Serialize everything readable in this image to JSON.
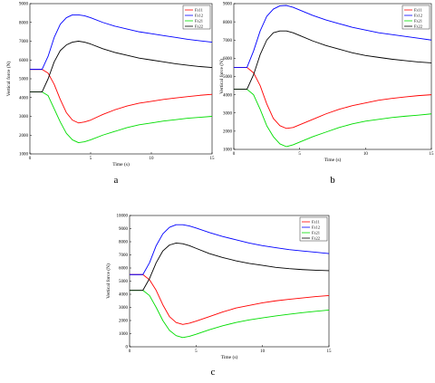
{
  "panel_labels": [
    "a",
    "b",
    "c"
  ],
  "chart_data": [
    {
      "type": "line",
      "panel": "a",
      "xlabel": "Time (s)",
      "ylabel": "Vertical force (N)",
      "xlim": [
        0,
        15
      ],
      "ylim": [
        1000,
        9000
      ],
      "xticks": [
        0,
        5,
        10,
        15
      ],
      "yticks": [
        1000,
        2000,
        3000,
        4000,
        5000,
        6000,
        7000,
        8000,
        9000
      ],
      "grid": false,
      "legend": "top-right",
      "x": [
        0,
        0.5,
        1,
        1.5,
        2,
        2.5,
        3,
        3.5,
        4,
        4.5,
        5,
        6,
        7,
        8,
        9,
        10,
        11,
        12,
        13,
        14,
        15
      ],
      "series": [
        {
          "name": "Fz11",
          "color": "#ff0000",
          "values": [
            5500,
            5500,
            5500,
            5300,
            4700,
            3900,
            3200,
            2800,
            2650,
            2700,
            2800,
            3100,
            3350,
            3550,
            3700,
            3800,
            3900,
            3980,
            4050,
            4120,
            4170
          ]
        },
        {
          "name": "Fz12",
          "color": "#0000ff",
          "values": [
            5500,
            5500,
            5500,
            6200,
            7200,
            7900,
            8250,
            8400,
            8400,
            8350,
            8250,
            8000,
            7800,
            7650,
            7500,
            7400,
            7300,
            7200,
            7100,
            7020,
            6950
          ]
        },
        {
          "name": "Fz21",
          "color": "#00dd00",
          "values": [
            4300,
            4300,
            4300,
            4100,
            3400,
            2700,
            2100,
            1750,
            1600,
            1650,
            1750,
            2000,
            2200,
            2400,
            2550,
            2650,
            2750,
            2820,
            2900,
            2950,
            3000
          ]
        },
        {
          "name": "Fz22",
          "color": "#000000",
          "values": [
            4300,
            4300,
            4300,
            5000,
            5900,
            6500,
            6800,
            6950,
            7000,
            6950,
            6850,
            6600,
            6400,
            6250,
            6100,
            6000,
            5900,
            5800,
            5720,
            5650,
            5600
          ]
        }
      ]
    },
    {
      "type": "line",
      "panel": "b",
      "xlabel": "Time (s)",
      "ylabel": "Vertical force (N)",
      "xlim": [
        0,
        15
      ],
      "ylim": [
        1000,
        9000
      ],
      "xticks": [
        0,
        5,
        10,
        15
      ],
      "yticks": [
        1000,
        2000,
        3000,
        4000,
        5000,
        6000,
        7000,
        8000,
        9000
      ],
      "grid": false,
      "legend": "top-right",
      "x": [
        0,
        0.5,
        1,
        1.5,
        2,
        2.5,
        3,
        3.5,
        4,
        4.5,
        5,
        6,
        7,
        8,
        9,
        10,
        11,
        12,
        13,
        14,
        15
      ],
      "series": [
        {
          "name": "Fz11",
          "color": "#ff0000",
          "values": [
            5500,
            5500,
            5500,
            5200,
            4500,
            3500,
            2700,
            2300,
            2150,
            2200,
            2350,
            2650,
            2950,
            3200,
            3400,
            3550,
            3700,
            3800,
            3880,
            3950,
            4000
          ]
        },
        {
          "name": "Fz12",
          "color": "#0000ff",
          "values": [
            5500,
            5500,
            5500,
            6400,
            7500,
            8300,
            8700,
            8880,
            8900,
            8800,
            8650,
            8350,
            8100,
            7900,
            7700,
            7550,
            7400,
            7300,
            7200,
            7100,
            7000
          ]
        },
        {
          "name": "Fz21",
          "color": "#00dd00",
          "values": [
            4300,
            4300,
            4300,
            4000,
            3200,
            2300,
            1700,
            1300,
            1150,
            1250,
            1400,
            1700,
            1950,
            2200,
            2400,
            2550,
            2650,
            2750,
            2820,
            2880,
            2950
          ]
        },
        {
          "name": "Fz22",
          "color": "#000000",
          "values": [
            4300,
            4300,
            4300,
            5100,
            6200,
            7000,
            7400,
            7500,
            7500,
            7400,
            7250,
            6950,
            6700,
            6500,
            6300,
            6150,
            6050,
            5950,
            5870,
            5800,
            5750
          ]
        }
      ]
    },
    {
      "type": "line",
      "panel": "c",
      "xlabel": "Time (s)",
      "ylabel": "Vertical force (N)",
      "xlim": [
        0,
        15
      ],
      "ylim": [
        0,
        10000
      ],
      "xticks": [
        0,
        5,
        10,
        15
      ],
      "yticks": [
        0,
        1000,
        2000,
        3000,
        4000,
        5000,
        6000,
        7000,
        8000,
        9000,
        10000
      ],
      "grid": false,
      "legend": "top-right",
      "x": [
        0,
        0.5,
        1,
        1.5,
        2,
        2.5,
        3,
        3.5,
        4,
        4.5,
        5,
        6,
        7,
        8,
        9,
        10,
        11,
        12,
        13,
        14,
        15
      ],
      "series": [
        {
          "name": "Fz11",
          "color": "#ff0000",
          "values": [
            5500,
            5500,
            5500,
            5100,
            4300,
            3200,
            2300,
            1850,
            1700,
            1800,
            1950,
            2300,
            2650,
            2950,
            3150,
            3350,
            3500,
            3620,
            3720,
            3820,
            3900
          ]
        },
        {
          "name": "Fz12",
          "color": "#0000ff",
          "values": [
            5500,
            5500,
            5500,
            6400,
            7700,
            8600,
            9100,
            9300,
            9300,
            9200,
            9050,
            8700,
            8400,
            8150,
            7900,
            7700,
            7550,
            7400,
            7300,
            7200,
            7100
          ]
        },
        {
          "name": "Fz21",
          "color": "#00dd00",
          "values": [
            4300,
            4300,
            4300,
            3900,
            3000,
            2000,
            1250,
            850,
            700,
            800,
            950,
            1300,
            1600,
            1850,
            2050,
            2200,
            2350,
            2480,
            2600,
            2700,
            2800
          ]
        },
        {
          "name": "Fz22",
          "color": "#000000",
          "values": [
            4300,
            4300,
            4300,
            5200,
            6400,
            7300,
            7750,
            7900,
            7850,
            7700,
            7500,
            7100,
            6800,
            6550,
            6350,
            6200,
            6050,
            5950,
            5880,
            5830,
            5800
          ]
        }
      ]
    }
  ]
}
